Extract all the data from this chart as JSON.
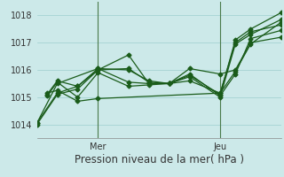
{
  "title": "Pression niveau de la mer( hPa )",
  "ylabel_ticks": [
    1014,
    1015,
    1016,
    1017,
    1018
  ],
  "ylim": [
    1013.5,
    1018.5
  ],
  "xlim": [
    0,
    24
  ],
  "x_mer": 6,
  "x_jeu": 18,
  "bg_color": "#cce9e9",
  "grid_color": "#9ecece",
  "line_color": "#1a5c1a",
  "marker": "D",
  "markersize": 2.5,
  "linewidth": 0.9,
  "series": [
    {
      "x": [
        0,
        2,
        4,
        6,
        9,
        11,
        13,
        15,
        18,
        19.5,
        21,
        24
      ],
      "y": [
        1014.0,
        1015.1,
        1015.3,
        1016.0,
        1016.05,
        1015.55,
        1015.5,
        1015.75,
        1015.0,
        1016.95,
        1017.3,
        1017.85
      ]
    },
    {
      "x": [
        0,
        2,
        4,
        6,
        9,
        11,
        13,
        15,
        18,
        19.5,
        21,
        24
      ],
      "y": [
        1014.05,
        1015.15,
        1015.4,
        1016.05,
        1016.0,
        1015.6,
        1015.5,
        1015.8,
        1015.1,
        1017.1,
        1017.5,
        1018.1
      ]
    },
    {
      "x": [
        0,
        2,
        6,
        9,
        11,
        13,
        15,
        18,
        19.5,
        21,
        24
      ],
      "y": [
        1014.05,
        1015.5,
        1016.05,
        1015.55,
        1015.5,
        1015.5,
        1015.6,
        1015.15,
        1017.0,
        1017.4,
        1017.65
      ]
    },
    {
      "x": [
        1,
        2,
        4,
        6,
        9,
        11,
        13,
        15,
        18,
        19.5,
        21,
        24
      ],
      "y": [
        1015.05,
        1015.55,
        1015.0,
        1015.9,
        1015.4,
        1015.45,
        1015.5,
        1015.85,
        1015.05,
        1015.85,
        1017.15,
        1017.45
      ]
    },
    {
      "x": [
        1,
        2,
        4,
        6,
        9,
        11,
        13,
        15,
        18,
        19.5,
        21,
        24
      ],
      "y": [
        1015.1,
        1015.6,
        1015.4,
        1016.0,
        1016.55,
        1015.5,
        1015.5,
        1016.05,
        1015.85,
        1016.0,
        1017.0,
        1017.2
      ]
    },
    {
      "x": [
        1,
        2,
        4,
        6,
        18,
        19.5,
        21,
        24
      ],
      "y": [
        1015.15,
        1015.25,
        1014.85,
        1014.95,
        1015.15,
        1015.95,
        1016.95,
        1017.75
      ]
    }
  ],
  "title_fontsize": 8.5,
  "tick_fontsize": 7,
  "xtick_labels": [
    "Mer",
    "Jeu"
  ],
  "xtick_positions": [
    6,
    18
  ]
}
